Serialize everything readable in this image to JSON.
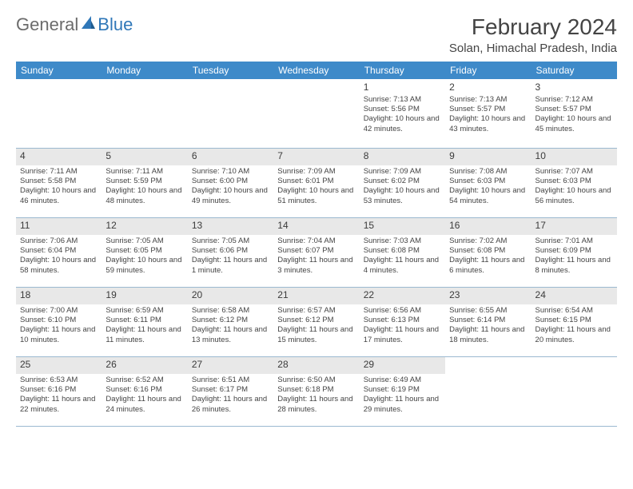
{
  "brand": {
    "part1": "General",
    "part2": "Blue"
  },
  "title": "February 2024",
  "location": "Solan, Himachal Pradesh, India",
  "weekdays": [
    "Sunday",
    "Monday",
    "Tuesday",
    "Wednesday",
    "Thursday",
    "Friday",
    "Saturday"
  ],
  "colors": {
    "header_bg": "#3e8ac9",
    "header_text": "#ffffff",
    "rule": "#9bb9d0",
    "shade": "#e8e8e8",
    "text": "#444444",
    "brand_blue": "#2f77b8"
  },
  "weeks": [
    {
      "shaded": false,
      "days": [
        {
          "n": "",
          "sr": "",
          "ss": "",
          "dl": ""
        },
        {
          "n": "",
          "sr": "",
          "ss": "",
          "dl": ""
        },
        {
          "n": "",
          "sr": "",
          "ss": "",
          "dl": ""
        },
        {
          "n": "",
          "sr": "",
          "ss": "",
          "dl": ""
        },
        {
          "n": "1",
          "sr": "Sunrise: 7:13 AM",
          "ss": "Sunset: 5:56 PM",
          "dl": "Daylight: 10 hours and 42 minutes."
        },
        {
          "n": "2",
          "sr": "Sunrise: 7:13 AM",
          "ss": "Sunset: 5:57 PM",
          "dl": "Daylight: 10 hours and 43 minutes."
        },
        {
          "n": "3",
          "sr": "Sunrise: 7:12 AM",
          "ss": "Sunset: 5:57 PM",
          "dl": "Daylight: 10 hours and 45 minutes."
        }
      ]
    },
    {
      "shaded": true,
      "days": [
        {
          "n": "4",
          "sr": "Sunrise: 7:11 AM",
          "ss": "Sunset: 5:58 PM",
          "dl": "Daylight: 10 hours and 46 minutes."
        },
        {
          "n": "5",
          "sr": "Sunrise: 7:11 AM",
          "ss": "Sunset: 5:59 PM",
          "dl": "Daylight: 10 hours and 48 minutes."
        },
        {
          "n": "6",
          "sr": "Sunrise: 7:10 AM",
          "ss": "Sunset: 6:00 PM",
          "dl": "Daylight: 10 hours and 49 minutes."
        },
        {
          "n": "7",
          "sr": "Sunrise: 7:09 AM",
          "ss": "Sunset: 6:01 PM",
          "dl": "Daylight: 10 hours and 51 minutes."
        },
        {
          "n": "8",
          "sr": "Sunrise: 7:09 AM",
          "ss": "Sunset: 6:02 PM",
          "dl": "Daylight: 10 hours and 53 minutes."
        },
        {
          "n": "9",
          "sr": "Sunrise: 7:08 AM",
          "ss": "Sunset: 6:03 PM",
          "dl": "Daylight: 10 hours and 54 minutes."
        },
        {
          "n": "10",
          "sr": "Sunrise: 7:07 AM",
          "ss": "Sunset: 6:03 PM",
          "dl": "Daylight: 10 hours and 56 minutes."
        }
      ]
    },
    {
      "shaded": true,
      "days": [
        {
          "n": "11",
          "sr": "Sunrise: 7:06 AM",
          "ss": "Sunset: 6:04 PM",
          "dl": "Daylight: 10 hours and 58 minutes."
        },
        {
          "n": "12",
          "sr": "Sunrise: 7:05 AM",
          "ss": "Sunset: 6:05 PM",
          "dl": "Daylight: 10 hours and 59 minutes."
        },
        {
          "n": "13",
          "sr": "Sunrise: 7:05 AM",
          "ss": "Sunset: 6:06 PM",
          "dl": "Daylight: 11 hours and 1 minute."
        },
        {
          "n": "14",
          "sr": "Sunrise: 7:04 AM",
          "ss": "Sunset: 6:07 PM",
          "dl": "Daylight: 11 hours and 3 minutes."
        },
        {
          "n": "15",
          "sr": "Sunrise: 7:03 AM",
          "ss": "Sunset: 6:08 PM",
          "dl": "Daylight: 11 hours and 4 minutes."
        },
        {
          "n": "16",
          "sr": "Sunrise: 7:02 AM",
          "ss": "Sunset: 6:08 PM",
          "dl": "Daylight: 11 hours and 6 minutes."
        },
        {
          "n": "17",
          "sr": "Sunrise: 7:01 AM",
          "ss": "Sunset: 6:09 PM",
          "dl": "Daylight: 11 hours and 8 minutes."
        }
      ]
    },
    {
      "shaded": true,
      "days": [
        {
          "n": "18",
          "sr": "Sunrise: 7:00 AM",
          "ss": "Sunset: 6:10 PM",
          "dl": "Daylight: 11 hours and 10 minutes."
        },
        {
          "n": "19",
          "sr": "Sunrise: 6:59 AM",
          "ss": "Sunset: 6:11 PM",
          "dl": "Daylight: 11 hours and 11 minutes."
        },
        {
          "n": "20",
          "sr": "Sunrise: 6:58 AM",
          "ss": "Sunset: 6:12 PM",
          "dl": "Daylight: 11 hours and 13 minutes."
        },
        {
          "n": "21",
          "sr": "Sunrise: 6:57 AM",
          "ss": "Sunset: 6:12 PM",
          "dl": "Daylight: 11 hours and 15 minutes."
        },
        {
          "n": "22",
          "sr": "Sunrise: 6:56 AM",
          "ss": "Sunset: 6:13 PM",
          "dl": "Daylight: 11 hours and 17 minutes."
        },
        {
          "n": "23",
          "sr": "Sunrise: 6:55 AM",
          "ss": "Sunset: 6:14 PM",
          "dl": "Daylight: 11 hours and 18 minutes."
        },
        {
          "n": "24",
          "sr": "Sunrise: 6:54 AM",
          "ss": "Sunset: 6:15 PM",
          "dl": "Daylight: 11 hours and 20 minutes."
        }
      ]
    },
    {
      "shaded": true,
      "days": [
        {
          "n": "25",
          "sr": "Sunrise: 6:53 AM",
          "ss": "Sunset: 6:16 PM",
          "dl": "Daylight: 11 hours and 22 minutes."
        },
        {
          "n": "26",
          "sr": "Sunrise: 6:52 AM",
          "ss": "Sunset: 6:16 PM",
          "dl": "Daylight: 11 hours and 24 minutes."
        },
        {
          "n": "27",
          "sr": "Sunrise: 6:51 AM",
          "ss": "Sunset: 6:17 PM",
          "dl": "Daylight: 11 hours and 26 minutes."
        },
        {
          "n": "28",
          "sr": "Sunrise: 6:50 AM",
          "ss": "Sunset: 6:18 PM",
          "dl": "Daylight: 11 hours and 28 minutes."
        },
        {
          "n": "29",
          "sr": "Sunrise: 6:49 AM",
          "ss": "Sunset: 6:19 PM",
          "dl": "Daylight: 11 hours and 29 minutes."
        },
        {
          "n": "",
          "sr": "",
          "ss": "",
          "dl": ""
        },
        {
          "n": "",
          "sr": "",
          "ss": "",
          "dl": ""
        }
      ]
    }
  ]
}
